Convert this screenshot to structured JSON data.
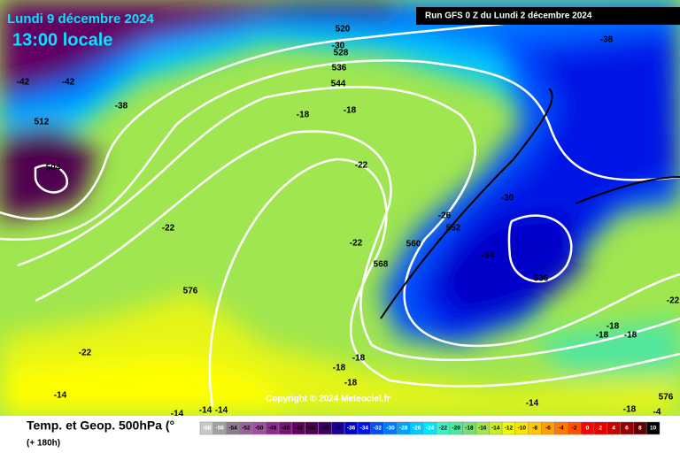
{
  "header": {
    "date": "Lundi 9 décembre 2024",
    "time": "13:00 locale",
    "run": "Run GFS 0 Z du Lundi 2 décembre 2024"
  },
  "copyright": "Copyright © 2024 Meteociel.fr",
  "contour_labels": [
    520,
    528,
    536,
    544,
    -42,
    -42,
    -38,
    512,
    504,
    -18,
    -18,
    -22,
    -22,
    -22,
    552,
    560,
    -26,
    568,
    -34,
    536,
    576,
    -22,
    -18,
    -18,
    -18,
    -14,
    -14,
    -14,
    -14,
    -14,
    -18,
    -18,
    -18,
    -18,
    -38,
    -30,
    -22,
    576,
    -4,
    -30
  ],
  "legend": {
    "title": "Temp. et Geop. 500hPa (°",
    "subtitle": "(+ 180h)",
    "values": [
      -58,
      -56,
      -54,
      -52,
      -50,
      -48,
      -46,
      -44,
      -42,
      -40,
      -38,
      -36,
      -34,
      -32,
      -30,
      -28,
      -26,
      -24,
      -22,
      -20,
      -18,
      -16,
      -14,
      -12,
      -10,
      -8,
      -6,
      -4,
      -2,
      0,
      2,
      4,
      6,
      8,
      10
    ],
    "colors": [
      "#c8c8c8",
      "#a0a0a0",
      "#8c7c8c",
      "#966496",
      "#a050a0",
      "#8c2c8c",
      "#781478",
      "#640064",
      "#500050",
      "#3c0064",
      "#1e0096",
      "#0000c8",
      "#0014e6",
      "#0050ff",
      "#0078ff",
      "#00a0ff",
      "#00c8ff",
      "#00e6ff",
      "#3cf0c8",
      "#50e6a0",
      "#78dc78",
      "#a0e650",
      "#c8f028",
      "#f0ff00",
      "#ffe600",
      "#ffc800",
      "#ffa000",
      "#ff7800",
      "#ff5000",
      "#ff0000",
      "#e60000",
      "#c80000",
      "#960000",
      "#640000",
      "#000000"
    ]
  }
}
